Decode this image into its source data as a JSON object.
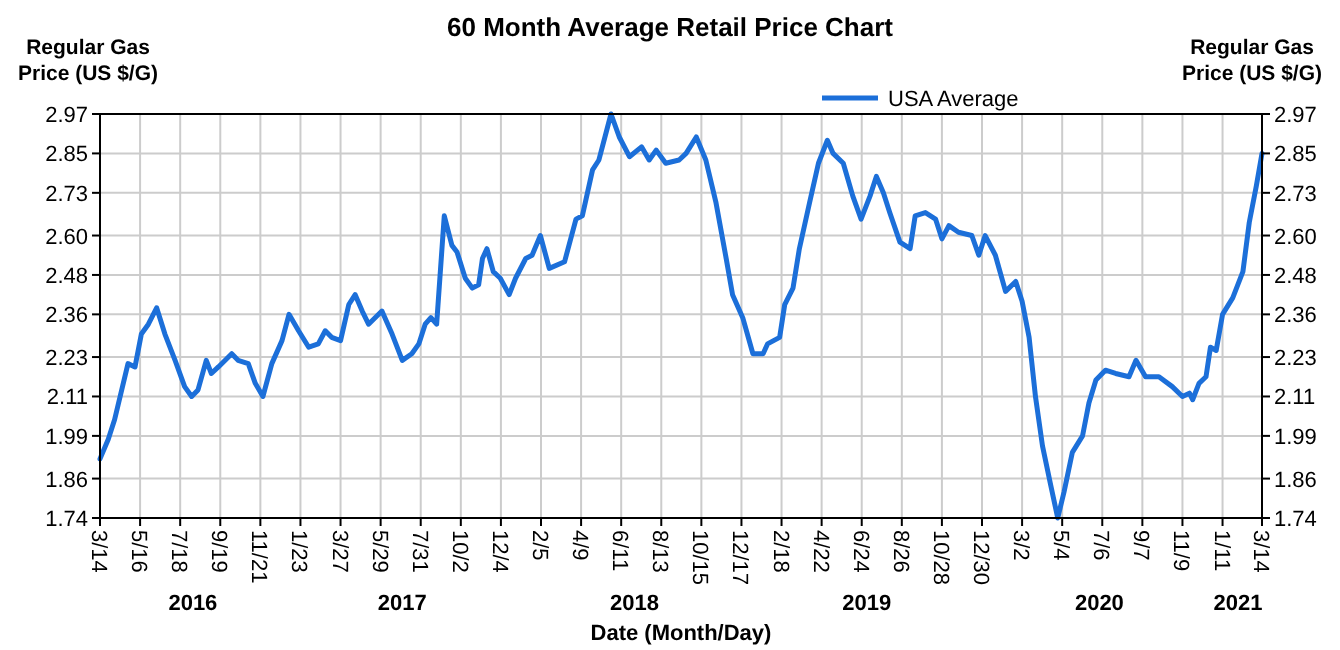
{
  "chart_data": {
    "type": "line",
    "title": "60 Month Average Retail Price Chart",
    "xlabel": "Date (Month/Day)",
    "ylabel": "Regular Gas Price (US $/G)",
    "y2label": "Regular Gas Price (US $/G)",
    "xlim": [
      "2016-03-14",
      "2021-03-14"
    ],
    "xticks": [
      {
        "value": "2016-03-14",
        "label": "3/14"
      },
      {
        "value": "2016-05-16",
        "label": "5/16"
      },
      {
        "value": "2016-07-18",
        "label": "7/18"
      },
      {
        "value": "2016-09-19",
        "label": "9/19"
      },
      {
        "value": "2016-11-21",
        "label": "11/21"
      },
      {
        "value": "2017-01-23",
        "label": "1/23"
      },
      {
        "value": "2017-03-27",
        "label": "3/27"
      },
      {
        "value": "2017-05-29",
        "label": "5/29"
      },
      {
        "value": "2017-07-31",
        "label": "7/31"
      },
      {
        "value": "2017-10-02",
        "label": "10/2"
      },
      {
        "value": "2017-12-04",
        "label": "12/4"
      },
      {
        "value": "2018-02-05",
        "label": "2/5"
      },
      {
        "value": "2018-04-09",
        "label": "4/9"
      },
      {
        "value": "2018-06-11",
        "label": "6/11"
      },
      {
        "value": "2018-08-13",
        "label": "8/13"
      },
      {
        "value": "2018-10-15",
        "label": "10/15"
      },
      {
        "value": "2018-12-17",
        "label": "12/17"
      },
      {
        "value": "2019-02-18",
        "label": "2/18"
      },
      {
        "value": "2019-04-22",
        "label": "4/22"
      },
      {
        "value": "2019-06-24",
        "label": "6/24"
      },
      {
        "value": "2019-08-26",
        "label": "8/26"
      },
      {
        "value": "2019-10-28",
        "label": "10/28"
      },
      {
        "value": "2019-12-30",
        "label": "12/30"
      },
      {
        "value": "2020-03-02",
        "label": "3/2"
      },
      {
        "value": "2020-05-04",
        "label": "5/4"
      },
      {
        "value": "2020-07-06",
        "label": "7/6"
      },
      {
        "value": "2020-09-07",
        "label": "9/7"
      },
      {
        "value": "2020-11-09",
        "label": "11/9"
      },
      {
        "value": "2021-01-11",
        "label": "1/11"
      },
      {
        "value": "2021-03-14",
        "label": "3/14"
      }
    ],
    "ylim": [
      1.74,
      2.97
    ],
    "yticks": [
      1.74,
      1.86,
      1.99,
      2.11,
      2.23,
      2.36,
      2.48,
      {
        "value": 2.6,
        "label": "2.60"
      },
      2.73,
      2.85,
      2.97
    ],
    "y2lim": [
      1.74,
      2.97
    ],
    "y2ticks": [
      1.74,
      1.86,
      1.99,
      2.11,
      2.23,
      2.36,
      2.48,
      {
        "value": 2.6,
        "label": "2.60"
      },
      2.73,
      2.85,
      2.97
    ],
    "grid": true,
    "legend": "top right",
    "marker": "none",
    "line_style": "solid",
    "annotations": [
      "2016",
      "2017",
      "2018",
      "2019",
      "2020",
      "2021"
    ],
    "series": [
      {
        "name": "USA Average",
        "color": "#1c6fd9",
        "x": [
          "2016-03-14",
          "2016-03-27",
          "2016-04-06",
          "2016-04-27",
          "2016-05-08",
          "2016-05-18",
          "2016-05-29",
          "2016-06-11",
          "2016-06-24",
          "2016-07-10",
          "2016-07-25",
          "2016-08-05",
          "2016-08-15",
          "2016-08-28",
          "2016-09-05",
          "2016-09-16",
          "2016-10-07",
          "2016-10-17",
          "2016-11-02",
          "2016-11-13",
          "2016-11-25",
          "2016-12-09",
          "2016-12-25",
          "2017-01-05",
          "2017-01-20",
          "2017-02-05",
          "2017-02-20",
          "2017-03-03",
          "2017-03-13",
          "2017-03-27",
          "2017-04-09",
          "2017-04-19",
          "2017-04-30",
          "2017-05-10",
          "2017-05-31",
          "2017-06-16",
          "2017-07-02",
          "2017-07-17",
          "2017-07-28",
          "2017-08-07",
          "2017-08-16",
          "2017-08-25",
          "2017-09-06",
          "2017-09-18",
          "2017-09-26",
          "2017-10-09",
          "2017-10-20",
          "2017-10-30",
          "2017-11-05",
          "2017-11-12",
          "2017-11-22",
          "2017-12-03",
          "2017-12-17",
          "2017-12-27",
          "2018-01-12",
          "2018-01-22",
          "2018-02-04",
          "2018-02-18",
          "2018-03-14",
          "2018-04-01",
          "2018-04-11",
          "2018-04-27",
          "2018-05-07",
          "2018-05-26",
          "2018-06-08",
          "2018-06-24",
          "2018-07-13",
          "2018-07-25",
          "2018-08-05",
          "2018-08-20",
          "2018-09-10",
          "2018-09-21",
          "2018-10-07",
          "2018-10-22",
          "2018-11-07",
          "2018-11-23",
          "2018-12-03",
          "2018-12-19",
          "2019-01-04",
          "2019-01-20",
          "2019-01-27",
          "2019-02-15",
          "2019-02-23",
          "2019-03-08",
          "2019-03-18",
          "2019-04-03",
          "2019-04-17",
          "2019-05-01",
          "2019-05-10",
          "2019-05-26",
          "2019-06-10",
          "2019-06-23",
          "2019-07-07",
          "2019-07-17",
          "2019-07-28",
          "2019-08-07",
          "2019-08-23",
          "2019-09-08",
          "2019-09-16",
          "2019-10-02",
          "2019-10-18",
          "2019-10-28",
          "2019-11-08",
          "2019-11-23",
          "2019-12-14",
          "2019-12-25",
          "2020-01-04",
          "2020-01-20",
          "2020-02-05",
          "2020-02-21",
          "2020-03-02",
          "2020-03-13",
          "2020-03-23",
          "2020-04-03",
          "2020-04-16",
          "2020-04-27",
          "2020-05-07",
          "2020-05-20",
          "2020-06-05",
          "2020-06-15",
          "2020-06-26",
          "2020-07-11",
          "2020-07-27",
          "2020-08-17",
          "2020-08-28",
          "2020-09-12",
          "2020-10-03",
          "2020-10-24",
          "2020-11-09",
          "2020-11-20",
          "2020-11-25",
          "2020-12-05",
          "2020-12-16",
          "2020-12-23",
          "2021-01-01",
          "2021-01-11",
          "2021-01-27",
          "2021-02-12",
          "2021-02-22",
          "2021-03-05",
          "2021-03-14"
        ],
        "values": [
          1.92,
          1.98,
          2.04,
          2.21,
          2.2,
          2.3,
          2.33,
          2.38,
          2.3,
          2.22,
          2.14,
          2.11,
          2.13,
          2.22,
          2.18,
          2.2,
          2.24,
          2.22,
          2.21,
          2.15,
          2.11,
          2.21,
          2.28,
          2.36,
          2.31,
          2.26,
          2.27,
          2.31,
          2.29,
          2.28,
          2.39,
          2.42,
          2.37,
          2.33,
          2.37,
          2.3,
          2.22,
          2.24,
          2.27,
          2.33,
          2.35,
          2.33,
          2.66,
          2.57,
          2.55,
          2.47,
          2.44,
          2.45,
          2.53,
          2.56,
          2.49,
          2.47,
          2.42,
          2.47,
          2.53,
          2.54,
          2.6,
          2.5,
          2.52,
          2.65,
          2.66,
          2.8,
          2.83,
          2.97,
          2.9,
          2.84,
          2.87,
          2.83,
          2.86,
          2.82,
          2.83,
          2.85,
          2.9,
          2.83,
          2.7,
          2.53,
          2.42,
          2.35,
          2.24,
          2.24,
          2.27,
          2.29,
          2.39,
          2.44,
          2.56,
          2.7,
          2.82,
          2.89,
          2.85,
          2.82,
          2.72,
          2.65,
          2.72,
          2.78,
          2.73,
          2.67,
          2.58,
          2.56,
          2.66,
          2.67,
          2.65,
          2.59,
          2.63,
          2.61,
          2.6,
          2.54,
          2.6,
          2.54,
          2.43,
          2.46,
          2.4,
          2.29,
          2.11,
          1.96,
          1.84,
          1.74,
          1.82,
          1.94,
          1.99,
          2.09,
          2.16,
          2.19,
          2.18,
          2.17,
          2.22,
          2.17,
          2.17,
          2.14,
          2.11,
          2.12,
          2.1,
          2.15,
          2.17,
          2.26,
          2.25,
          2.36,
          2.41,
          2.49,
          2.64,
          2.75,
          2.85
        ]
      }
    ]
  }
}
